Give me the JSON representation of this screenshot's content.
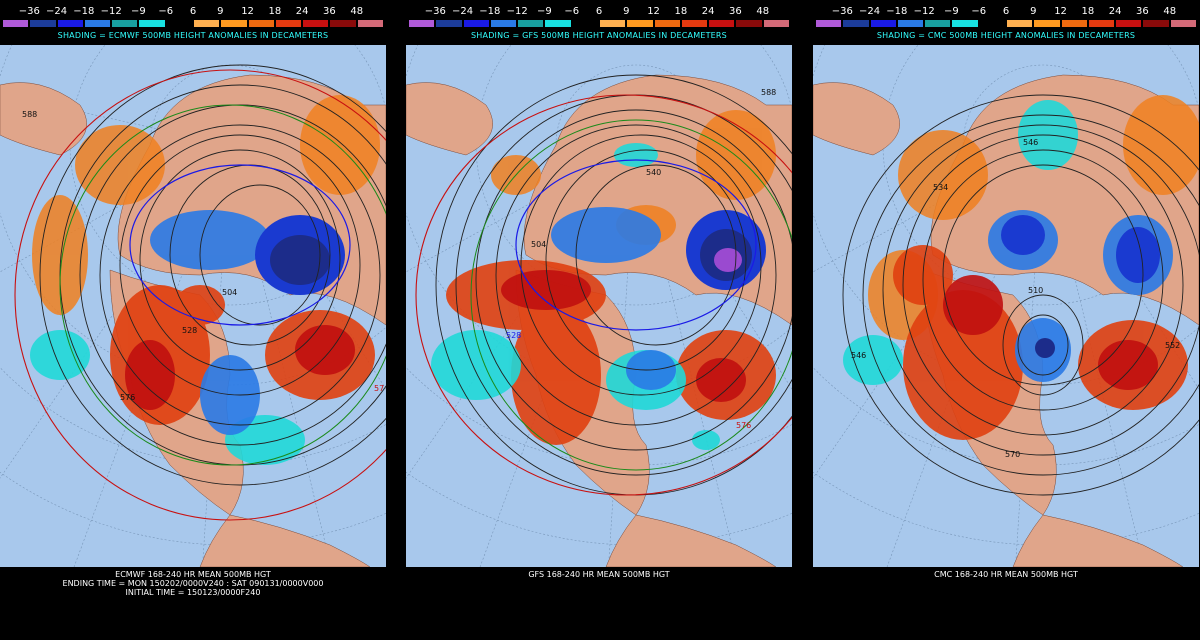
{
  "scale": {
    "labels": [
      "−36",
      "−24",
      "−18",
      "−12",
      "−9",
      "−6",
      "6",
      "9",
      "12",
      "18",
      "24",
      "36",
      "48"
    ],
    "colors": [
      "#b05ad8",
      "#1c3c9a",
      "#1a1ae6",
      "#2a7ae6",
      "#18a0a0",
      "#18e0e0",
      "#000000",
      "#ffb050",
      "#ff9a20",
      "#f06a10",
      "#e63a10",
      "#c81010",
      "#8a0a0a",
      "#d46a78"
    ]
  },
  "panels": [
    {
      "model": "ECMWF",
      "shading_text": "SHADING = ECMWF 500MB HEIGHT ANOMALIES IN DECAMETERS",
      "caption_lines": [
        "ECMWF 168-240 HR MEAN 500MB HGT",
        "ENDING TIME = MON 150202/0000V240 : SAT 090131/0000V000",
        "INITIAL TIME = 150123/0000F240"
      ],
      "contour_labels": [
        "588",
        "504",
        "528",
        "576",
        "57"
      ]
    },
    {
      "model": "GFS",
      "shading_text": "SHADING = GFS 500MB HEIGHT ANOMALIES IN DECAMETERS",
      "caption_lines": [
        "GFS 168-240 HR MEAN 500MB HGT"
      ],
      "contour_labels": [
        "588",
        "540",
        "504",
        "528",
        "576"
      ]
    },
    {
      "model": "CMC",
      "shading_text": "SHADING = CMC 500MB HEIGHT ANOMALIES IN DECAMETERS",
      "caption_lines": [
        "CMC 168-240 HR MEAN 500MB HGT"
      ],
      "contour_labels": [
        "546",
        "534",
        "510",
        "552",
        "546",
        "570"
      ]
    }
  ]
}
